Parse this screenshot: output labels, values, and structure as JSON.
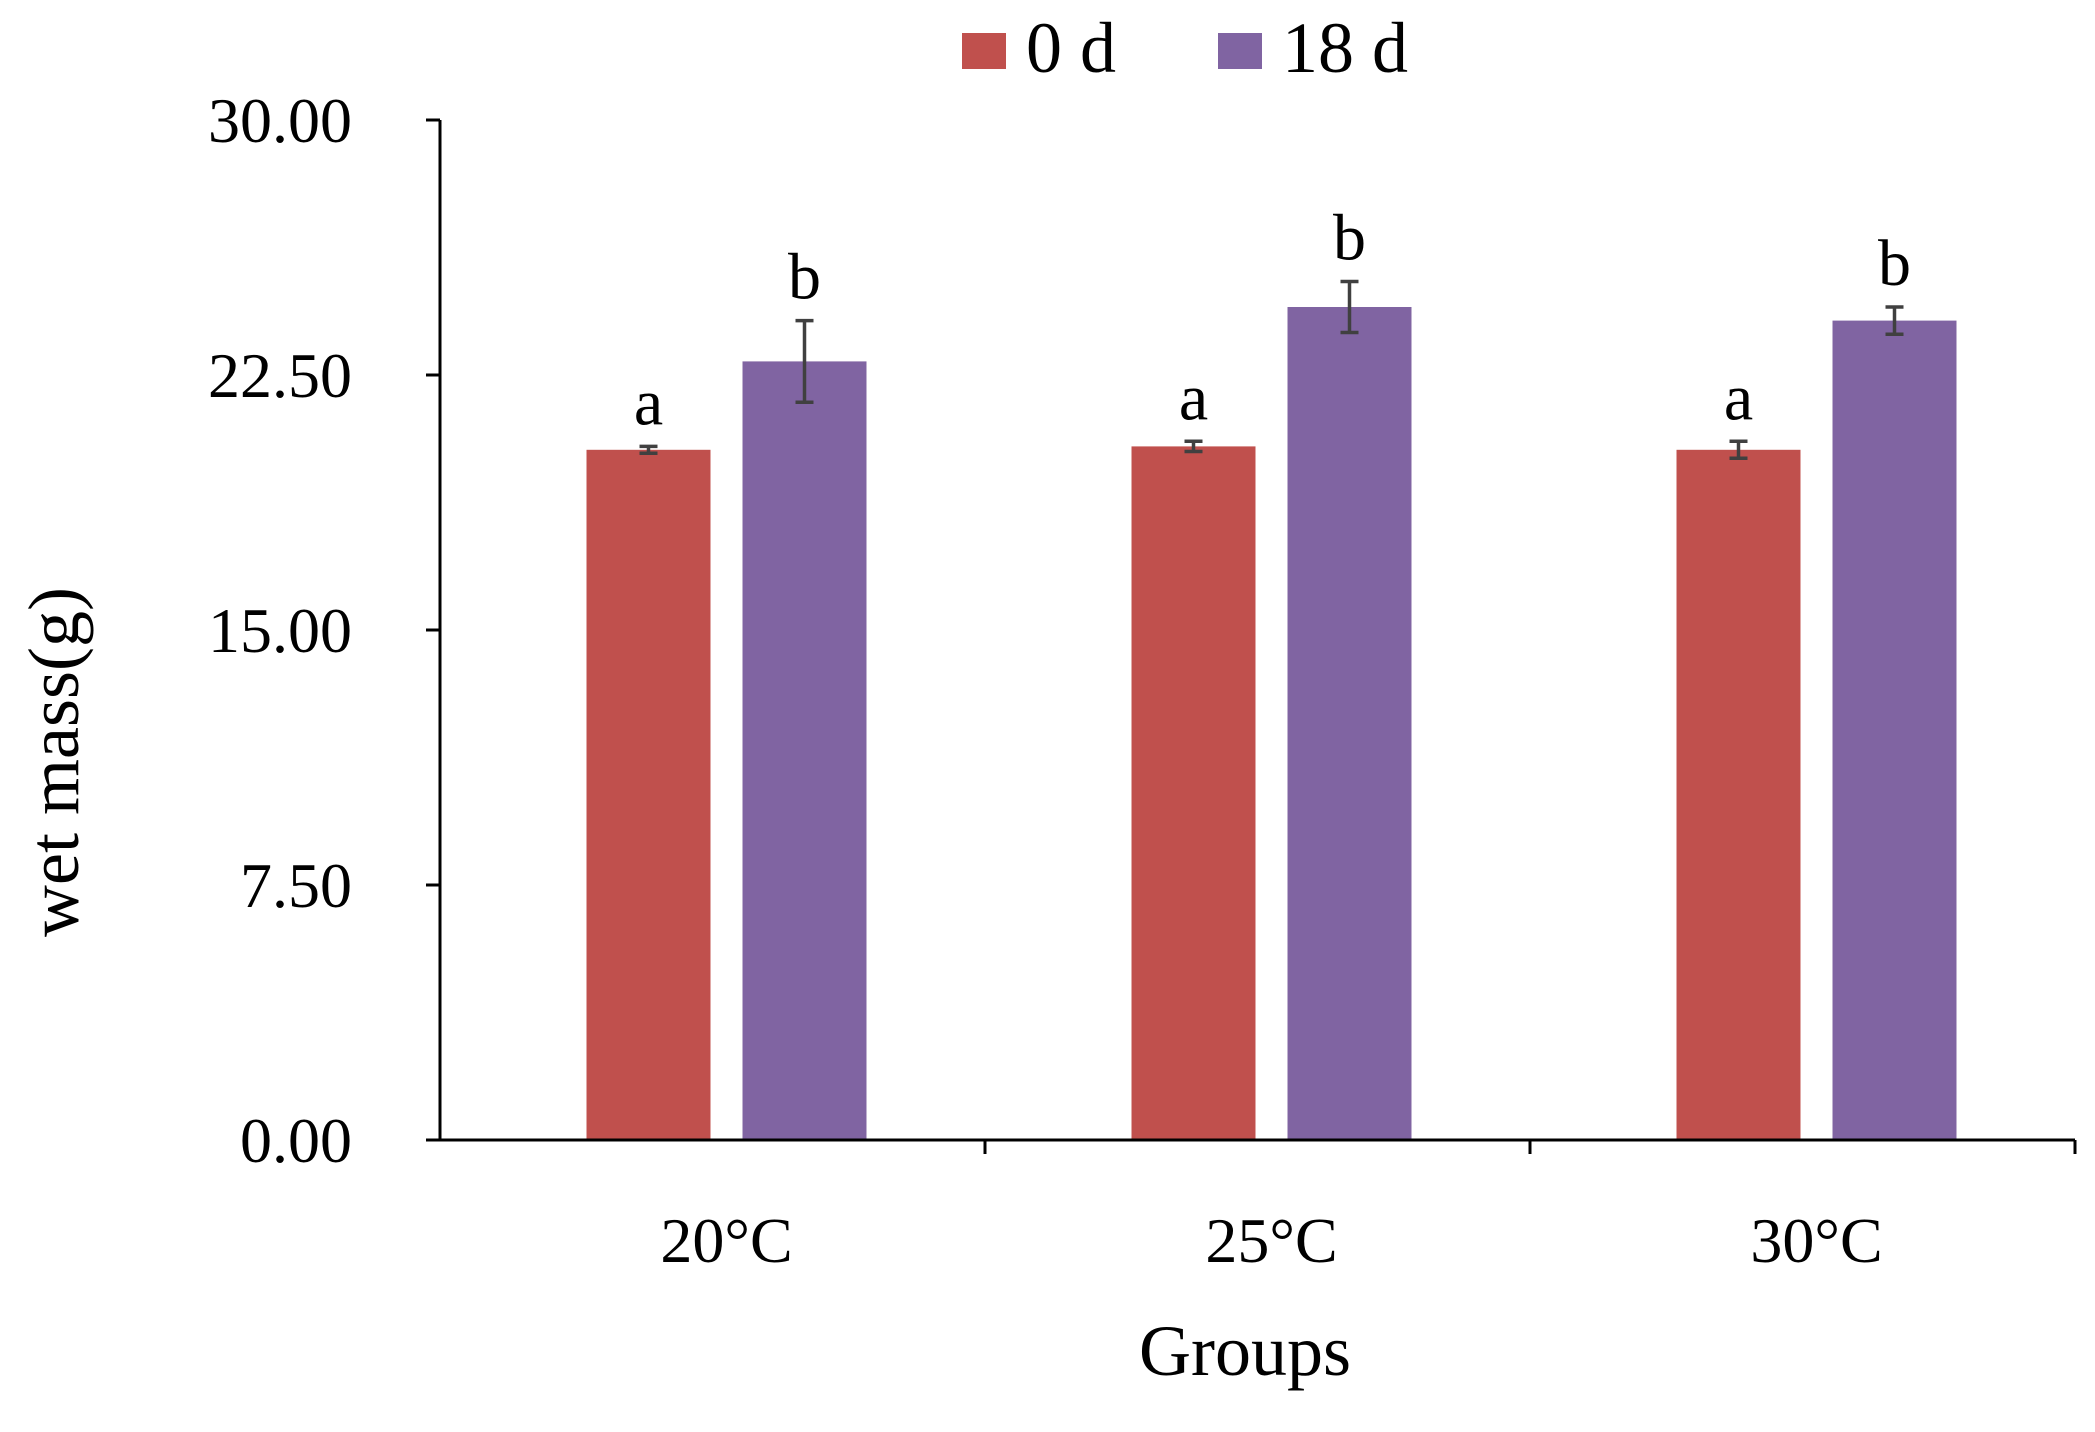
{
  "chart_data": {
    "type": "bar",
    "title": "",
    "xlabel": "Groups",
    "ylabel": "wet mass(g)",
    "ylim": [
      0,
      30
    ],
    "yticks": [
      0,
      7.5,
      15,
      22.5,
      30
    ],
    "ytick_labels": [
      "0.00",
      "7.50",
      "15.00",
      "22.50",
      "30.00"
    ],
    "categories": [
      "20°C",
      "25°C",
      "30°C"
    ],
    "legend_position": "top-center",
    "series": [
      {
        "name": "0 d",
        "color": "#c0504d",
        "values": [
          20.3,
          20.4,
          20.3
        ],
        "errors": [
          0.1,
          0.15,
          0.25
        ],
        "significance": [
          "a",
          "a",
          "a"
        ]
      },
      {
        "name": "18 d",
        "color": "#8064a2",
        "values": [
          22.9,
          24.5,
          24.1
        ],
        "errors": [
          1.2,
          0.75,
          0.4
        ],
        "significance": [
          "b",
          "b",
          "b"
        ]
      }
    ],
    "error_bar_color": "#404040",
    "grid": false
  }
}
